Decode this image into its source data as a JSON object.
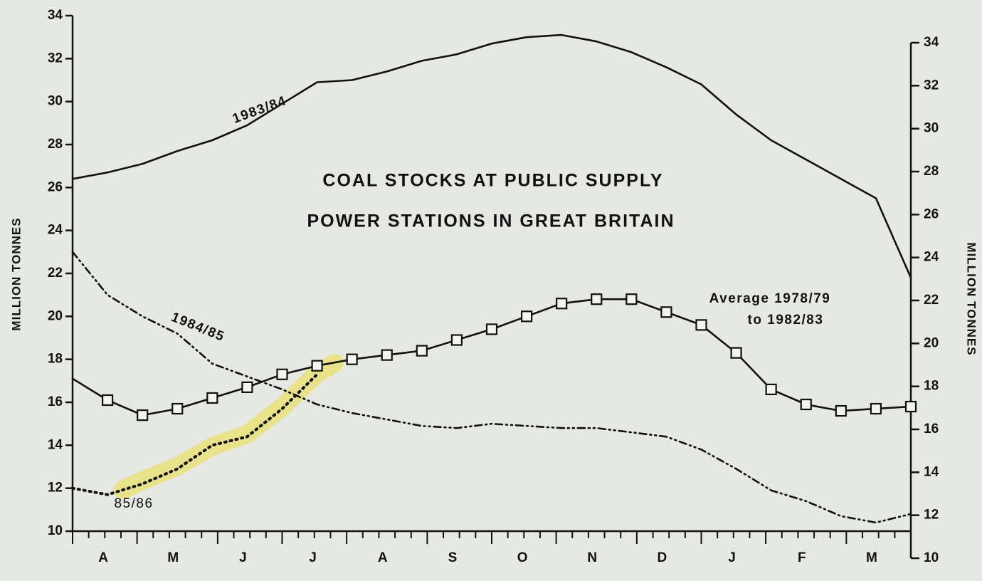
{
  "chart_data": {
    "type": "line",
    "title": [
      "COAL STOCKS AT PUBLIC SUPPLY",
      "POWER STATIONS IN GREAT BRITAIN"
    ],
    "y_label": "MILLION TONNES",
    "y2_label": "MILLION TONNES",
    "categories": [
      null,
      "A",
      null,
      "M",
      null,
      "J",
      null,
      "J",
      null,
      "A",
      null,
      "S",
      null,
      "O",
      null,
      "N",
      null,
      "D",
      null,
      "J",
      null,
      "F",
      null,
      "M",
      null
    ],
    "series": [
      {
        "name": "1983/84",
        "color": "#111111",
        "style": "solid",
        "values": [
          26.4,
          26.7,
          27.1,
          27.7,
          28.2,
          28.9,
          29.9,
          30.9,
          31.0,
          31.4,
          31.9,
          32.2,
          32.7,
          33.0,
          33.1,
          32.8,
          32.3,
          31.6,
          30.8,
          29.4,
          28.2,
          27.3,
          26.4,
          25.5,
          21.8
        ]
      },
      {
        "name": "1984/85",
        "color": "#111111",
        "style": "dashdot",
        "values": [
          23.0,
          21.0,
          20.0,
          19.2,
          17.8,
          17.2,
          16.6,
          15.9,
          15.5,
          15.2,
          14.9,
          14.8,
          15.0,
          14.9,
          14.8,
          14.8,
          14.6,
          14.4,
          13.8,
          12.9,
          11.9,
          11.4,
          10.7,
          10.4,
          10.8
        ]
      },
      {
        "name": "85/86",
        "color": "#111111",
        "style": "dotted",
        "values": [
          12.0,
          11.7,
          12.2,
          12.9,
          14.0,
          14.4,
          15.7,
          17.3,
          null,
          null,
          null,
          null,
          null,
          null,
          null,
          null,
          null,
          null,
          null,
          null,
          null,
          null,
          null,
          null,
          null
        ]
      },
      {
        "name": "Average 1978/79 to 1982/83",
        "color": "#111111",
        "style": "solid",
        "marker": "square",
        "values": [
          17.1,
          16.1,
          15.4,
          15.7,
          16.2,
          16.7,
          17.3,
          17.7,
          18.0,
          18.2,
          18.4,
          18.9,
          19.4,
          20.0,
          20.6,
          20.8,
          20.8,
          20.2,
          19.6,
          18.3,
          16.6,
          15.9,
          15.6,
          15.7,
          15.8
        ]
      }
    ],
    "ylim": [
      10,
      34
    ],
    "yticks": [
      10,
      12,
      14,
      16,
      18,
      20,
      22,
      24,
      26,
      28,
      30,
      32,
      34
    ],
    "y2lim": [
      10,
      34
    ],
    "y2ticks": [
      10,
      12,
      14,
      16,
      18,
      20,
      22,
      24,
      26,
      28,
      30,
      32,
      34
    ]
  }
}
